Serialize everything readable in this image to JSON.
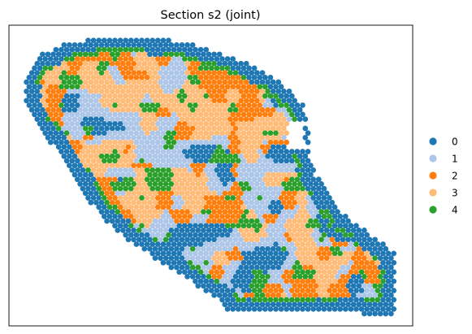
{
  "chart_data": {
    "type": "scatter",
    "title": "Section s2 (joint)",
    "xlabel": "",
    "ylabel": "",
    "axis_ticks": "none",
    "grid": false,
    "legend_placement": "right",
    "legend": [
      {
        "label": "0",
        "color": "#1f77b4"
      },
      {
        "label": "1",
        "color": "#aec7e8"
      },
      {
        "label": "2",
        "color": "#ff7f0e"
      },
      {
        "label": "3",
        "color": "#ffbb78"
      },
      {
        "label": "4",
        "color": "#2ca02c"
      }
    ],
    "marker": "filled circle, hexagonal spot grid (spatial transcriptomics)",
    "points_description": "Hexagonal spot grid with clusters: an outer ring of cluster 0, a patchy cluster 4 boundary, and an interior mosaic of clusters 1, 2, 3 and 0."
  }
}
